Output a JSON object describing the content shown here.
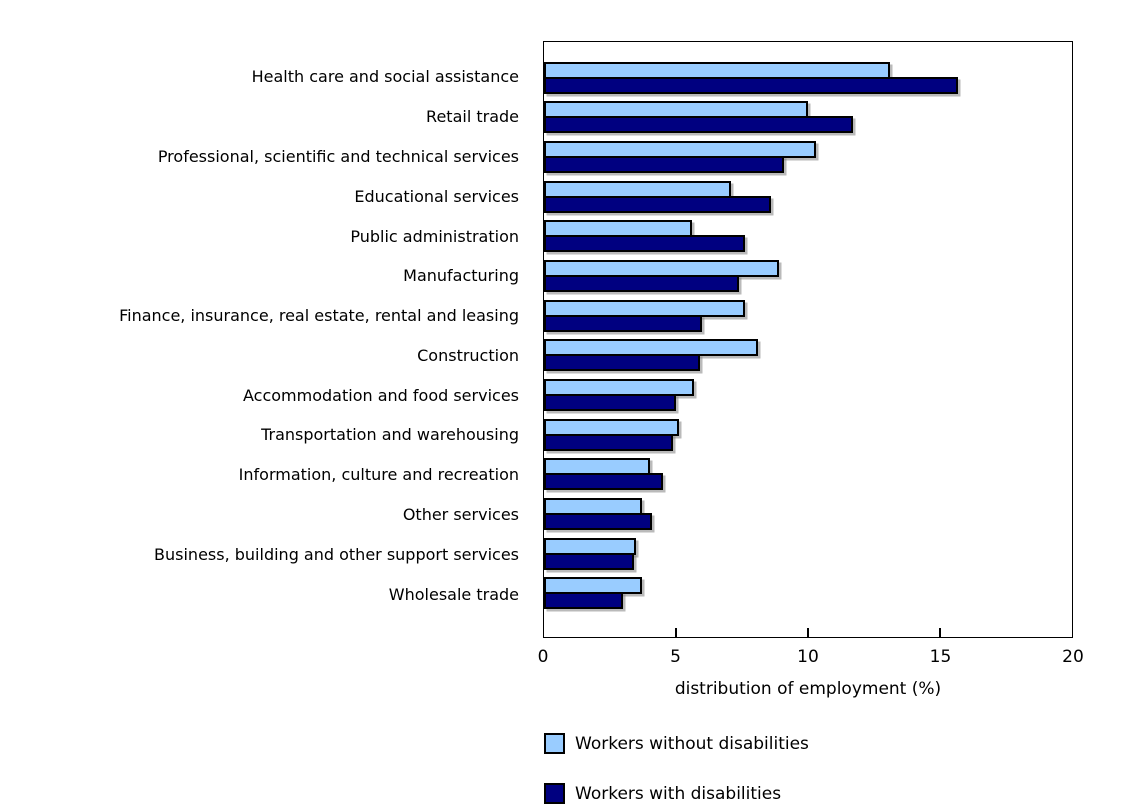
{
  "chart_data": {
    "type": "bar",
    "orientation": "horizontal",
    "xlabel": "distribution of employment (%)",
    "ylabel": "",
    "xlim": [
      0,
      20
    ],
    "xticks": [
      0,
      5,
      10,
      15,
      20
    ],
    "grid": false,
    "legend_position": "bottom-left",
    "categories": [
      "Health care and social assistance",
      "Retail trade",
      "Professional, scientific and technical services",
      "Educational services",
      "Public administration",
      "Manufacturing",
      "Finance, insurance, real estate, rental and leasing",
      "Construction",
      "Accommodation and food services",
      "Transportation and warehousing",
      "Information, culture and recreation",
      "Other services",
      "Business, building and other support services",
      "Wholesale trade"
    ],
    "series": [
      {
        "name": "Workers without disabilities",
        "color": "#99CCFF",
        "values": [
          13.1,
          10.0,
          10.3,
          7.1,
          5.6,
          8.9,
          7.6,
          8.1,
          5.7,
          5.1,
          4.0,
          3.7,
          3.5,
          3.7
        ]
      },
      {
        "name": "Workers with disabilities",
        "color": "#000080",
        "values": [
          15.7,
          11.7,
          9.1,
          8.6,
          7.6,
          7.4,
          6.0,
          5.9,
          5.0,
          4.9,
          4.5,
          4.1,
          3.4,
          3.0
        ]
      }
    ],
    "style": {
      "bar_border_color": "#000000",
      "axis_color": "#000000",
      "background": "#ffffff"
    }
  }
}
